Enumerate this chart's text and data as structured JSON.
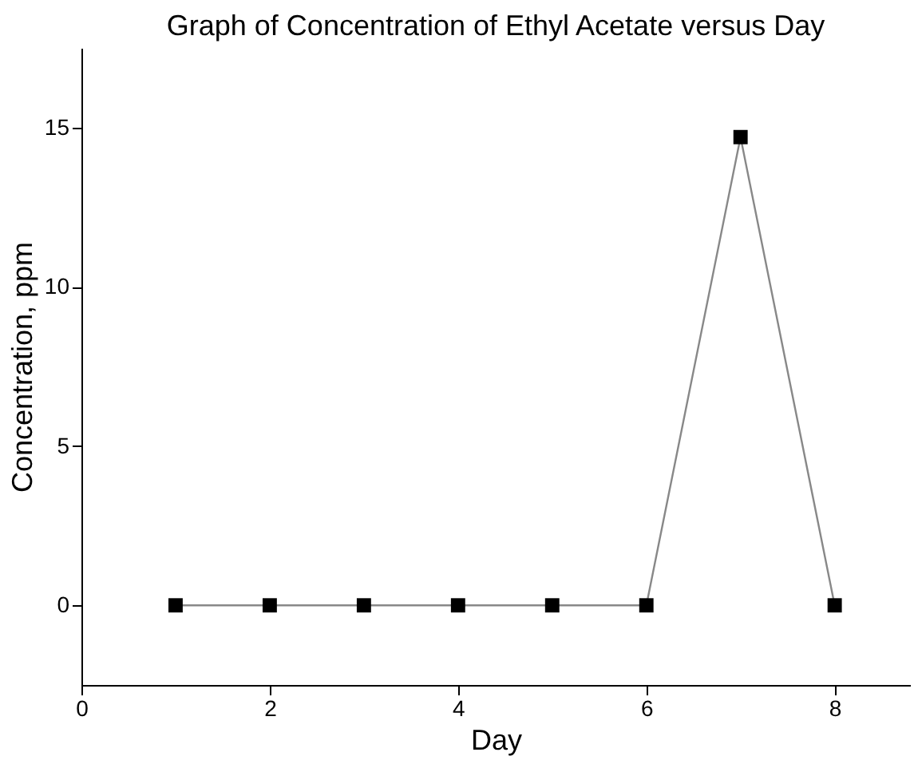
{
  "chart_data": {
    "type": "line",
    "title": "Graph of Concentration of Ethyl Acetate versus Day",
    "xlabel": "Day",
    "ylabel": "Concentration, ppm",
    "x": [
      1,
      2,
      3,
      4,
      5,
      6,
      7,
      8
    ],
    "series": [
      {
        "color": "#000000",
        "values": [
          0,
          0,
          0,
          0,
          0,
          0,
          14.7,
          0
        ]
      }
    ],
    "xlim": [
      0,
      8.8
    ],
    "xticks": [
      0,
      2,
      4,
      6,
      8
    ],
    "ylim": [
      -2.5,
      17.5
    ],
    "yticks": [
      0,
      5,
      10,
      15
    ],
    "grid": false,
    "marker": "square",
    "line_style": "solid"
  }
}
